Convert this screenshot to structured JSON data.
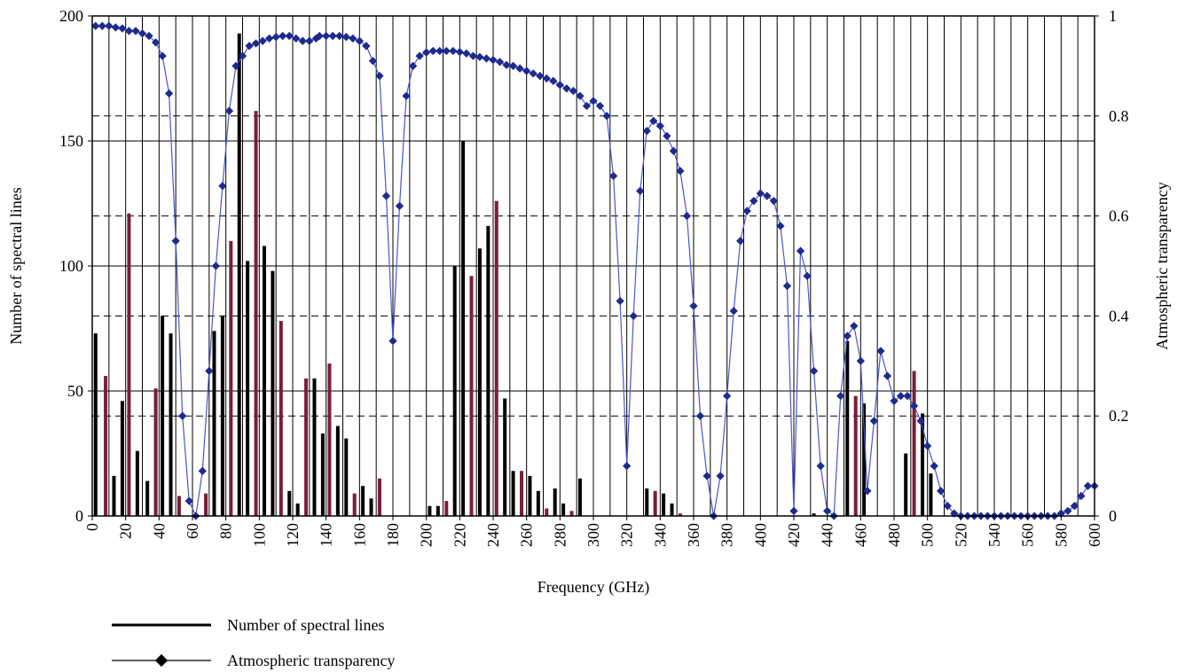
{
  "chart_data": {
    "type": "bar",
    "xlabel": "Frequency (GHz)",
    "ylabel": "Number of spectral lines",
    "y2label": "Atmospheric transparency",
    "xlim": [
      0,
      600
    ],
    "ylim": [
      0,
      200
    ],
    "y2lim": [
      0,
      1
    ],
    "x_ticks": [
      "0",
      "20",
      "40",
      "60",
      "80",
      "100",
      "120",
      "140",
      "160",
      "180",
      "200",
      "220",
      "240",
      "260",
      "280",
      "300",
      "320",
      "340",
      "360",
      "380",
      "400",
      "420",
      "440",
      "460",
      "480",
      "500",
      "520",
      "540",
      "560",
      "580",
      "600"
    ],
    "y_ticks": [
      "0",
      "50",
      "100",
      "150",
      "200"
    ],
    "y2_ticks": [
      "0",
      "0.2",
      "0.4",
      "0.6",
      "0.8",
      "1"
    ],
    "grid": "vertical every 10 GHz, horizontal solid at 50-unit steps, dashed at transparency 0.2 steps",
    "legend_position": "bottom-left",
    "series": [
      {
        "name": "Number of spectral lines",
        "kind": "bar",
        "axis": "left",
        "color": "#000000",
        "points": [
          [
            2,
            73
          ],
          [
            8,
            56
          ],
          [
            13,
            16
          ],
          [
            18,
            46
          ],
          [
            22,
            121
          ],
          [
            27,
            26
          ],
          [
            33,
            14
          ],
          [
            38,
            51
          ],
          [
            42,
            80
          ],
          [
            47,
            73
          ],
          [
            52,
            8
          ],
          [
            57,
            0
          ],
          [
            63,
            0
          ],
          [
            68,
            9
          ],
          [
            73,
            74
          ],
          [
            78,
            80
          ],
          [
            83,
            110
          ],
          [
            88,
            193
          ],
          [
            93,
            102
          ],
          [
            98,
            162
          ],
          [
            103,
            108
          ],
          [
            108,
            98
          ],
          [
            113,
            78
          ],
          [
            118,
            10
          ],
          [
            123,
            5
          ],
          [
            128,
            55
          ],
          [
            133,
            55
          ],
          [
            138,
            33
          ],
          [
            142,
            61
          ],
          [
            147,
            36
          ],
          [
            152,
            31
          ],
          [
            157,
            9
          ],
          [
            162,
            12
          ],
          [
            167,
            7
          ],
          [
            172,
            15
          ],
          [
            202,
            4
          ],
          [
            207,
            4
          ],
          [
            212,
            6
          ],
          [
            217,
            100
          ],
          [
            222,
            150
          ],
          [
            227,
            96
          ],
          [
            232,
            107
          ],
          [
            237,
            116
          ],
          [
            242,
            126
          ],
          [
            247,
            47
          ],
          [
            252,
            18
          ],
          [
            257,
            18
          ],
          [
            262,
            16
          ],
          [
            267,
            10
          ],
          [
            272,
            3
          ],
          [
            277,
            11
          ],
          [
            282,
            5
          ],
          [
            287,
            2
          ],
          [
            292,
            15
          ],
          [
            332,
            11
          ],
          [
            337,
            10
          ],
          [
            342,
            9
          ],
          [
            347,
            5
          ],
          [
            352,
            1
          ],
          [
            432,
            1
          ],
          [
            452,
            70
          ],
          [
            457,
            48
          ],
          [
            462,
            45
          ],
          [
            487,
            25
          ],
          [
            492,
            58
          ],
          [
            497,
            41
          ],
          [
            502,
            17
          ]
        ]
      },
      {
        "name": "Atmospheric transparency",
        "kind": "line",
        "axis": "right",
        "color": "#1f2a8f",
        "points": [
          [
            2,
            0.98
          ],
          [
            6,
            0.98
          ],
          [
            10,
            0.98
          ],
          [
            14,
            0.977
          ],
          [
            18,
            0.975
          ],
          [
            22,
            0.97
          ],
          [
            26,
            0.97
          ],
          [
            30,
            0.965
          ],
          [
            34,
            0.96
          ],
          [
            38,
            0.947
          ],
          [
            42,
            0.92
          ],
          [
            46,
            0.845
          ],
          [
            50,
            0.55
          ],
          [
            54,
            0.2
          ],
          [
            58,
            0.03
          ],
          [
            62,
            0
          ],
          [
            66,
            0.09
          ],
          [
            70,
            0.29
          ],
          [
            74,
            0.5
          ],
          [
            78,
            0.66
          ],
          [
            82,
            0.81
          ],
          [
            86,
            0.9
          ],
          [
            90,
            0.92
          ],
          [
            94,
            0.94
          ],
          [
            98,
            0.945
          ],
          [
            102,
            0.95
          ],
          [
            106,
            0.955
          ],
          [
            110,
            0.958
          ],
          [
            114,
            0.96
          ],
          [
            118,
            0.96
          ],
          [
            122,
            0.955
          ],
          [
            126,
            0.95
          ],
          [
            130,
            0.95
          ],
          [
            134,
            0.955
          ],
          [
            136,
            0.96
          ],
          [
            140,
            0.96
          ],
          [
            144,
            0.96
          ],
          [
            148,
            0.96
          ],
          [
            152,
            0.958
          ],
          [
            156,
            0.955
          ],
          [
            160,
            0.95
          ],
          [
            164,
            0.94
          ],
          [
            168,
            0.91
          ],
          [
            172,
            0.88
          ],
          [
            176,
            0.64
          ],
          [
            180,
            0.35
          ],
          [
            184,
            0.62
          ],
          [
            188,
            0.84
          ],
          [
            192,
            0.9
          ],
          [
            196,
            0.92
          ],
          [
            200,
            0.927
          ],
          [
            204,
            0.93
          ],
          [
            208,
            0.93
          ],
          [
            212,
            0.93
          ],
          [
            216,
            0.93
          ],
          [
            220,
            0.928
          ],
          [
            224,
            0.925
          ],
          [
            228,
            0.92
          ],
          [
            232,
            0.918
          ],
          [
            236,
            0.915
          ],
          [
            240,
            0.912
          ],
          [
            244,
            0.908
          ],
          [
            248,
            0.902
          ],
          [
            252,
            0.9
          ],
          [
            256,
            0.895
          ],
          [
            260,
            0.89
          ],
          [
            264,
            0.885
          ],
          [
            268,
            0.88
          ],
          [
            272,
            0.875
          ],
          [
            276,
            0.87
          ],
          [
            280,
            0.862
          ],
          [
            284,
            0.855
          ],
          [
            288,
            0.85
          ],
          [
            292,
            0.84
          ],
          [
            296,
            0.82
          ],
          [
            300,
            0.83
          ],
          [
            304,
            0.82
          ],
          [
            308,
            0.8
          ],
          [
            312,
            0.68
          ],
          [
            316,
            0.43
          ],
          [
            320,
            0.1
          ],
          [
            324,
            0.4
          ],
          [
            328,
            0.65
          ],
          [
            332,
            0.77
          ],
          [
            336,
            0.79
          ],
          [
            340,
            0.78
          ],
          [
            344,
            0.76
          ],
          [
            348,
            0.73
          ],
          [
            352,
            0.69
          ],
          [
            356,
            0.6
          ],
          [
            360,
            0.42
          ],
          [
            364,
            0.2
          ],
          [
            368,
            0.08
          ],
          [
            372,
            0
          ],
          [
            376,
            0.08
          ],
          [
            380,
            0.24
          ],
          [
            384,
            0.41
          ],
          [
            388,
            0.55
          ],
          [
            392,
            0.61
          ],
          [
            396,
            0.63
          ],
          [
            400,
            0.645
          ],
          [
            404,
            0.64
          ],
          [
            408,
            0.63
          ],
          [
            412,
            0.58
          ],
          [
            416,
            0.46
          ],
          [
            420,
            0.01
          ],
          [
            424,
            0.53
          ],
          [
            428,
            0.48
          ],
          [
            432,
            0.29
          ],
          [
            436,
            0.1
          ],
          [
            440,
            0.01
          ],
          [
            444,
            0
          ],
          [
            448,
            0.24
          ],
          [
            452,
            0.36
          ],
          [
            456,
            0.38
          ],
          [
            460,
            0.31
          ],
          [
            464,
            0.05
          ],
          [
            468,
            0.19
          ],
          [
            472,
            0.33
          ],
          [
            476,
            0.28
          ],
          [
            480,
            0.23
          ],
          [
            484,
            0.24
          ],
          [
            488,
            0.24
          ],
          [
            492,
            0.22
          ],
          [
            496,
            0.19
          ],
          [
            500,
            0.14
          ],
          [
            504,
            0.1
          ],
          [
            508,
            0.05
          ],
          [
            512,
            0.02
          ],
          [
            516,
            0.005
          ],
          [
            520,
            0
          ],
          [
            524,
            0
          ],
          [
            528,
            0
          ],
          [
            532,
            0
          ],
          [
            536,
            0
          ],
          [
            540,
            0
          ],
          [
            544,
            0
          ],
          [
            548,
            0
          ],
          [
            552,
            0
          ],
          [
            556,
            0
          ],
          [
            560,
            0
          ],
          [
            564,
            0
          ],
          [
            568,
            0
          ],
          [
            572,
            0
          ],
          [
            576,
            0
          ],
          [
            580,
            0.005
          ],
          [
            584,
            0.01
          ],
          [
            588,
            0.02
          ],
          [
            592,
            0.04
          ],
          [
            596,
            0.06
          ],
          [
            600,
            0.06
          ]
        ]
      }
    ]
  }
}
